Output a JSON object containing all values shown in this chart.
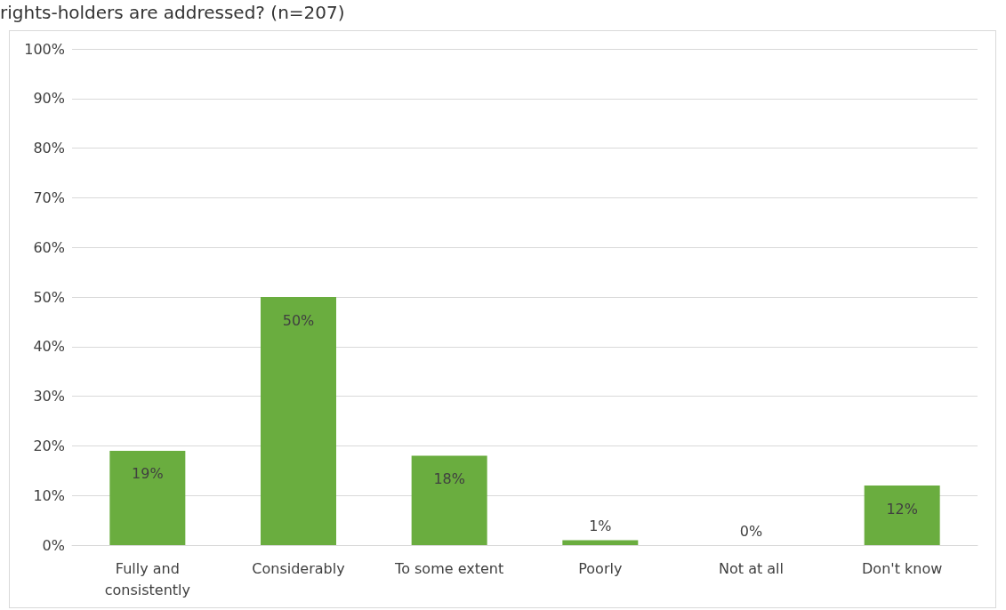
{
  "chart_data": {
    "type": "bar",
    "title": "rights-holders are addressed? (n=207)",
    "categories": [
      "Fully and\nconsistently",
      "Considerably",
      "To some extent",
      "Poorly",
      "Not at all",
      "Don't know"
    ],
    "values": [
      19,
      50,
      18,
      1,
      0,
      12
    ],
    "value_labels": [
      "19%",
      "50%",
      "18%",
      "1%",
      "0%",
      "12%"
    ],
    "color": "#6aad3f",
    "ylim": [
      0,
      100
    ],
    "yticks": [
      {
        "value": 0,
        "label": "0%"
      },
      {
        "value": 10,
        "label": "10%"
      },
      {
        "value": 20,
        "label": "20%"
      },
      {
        "value": 30,
        "label": "30%"
      },
      {
        "value": 40,
        "label": "40%"
      },
      {
        "value": 50,
        "label": "50%"
      },
      {
        "value": 60,
        "label": "60%"
      },
      {
        "value": 70,
        "label": "70%"
      },
      {
        "value": 80,
        "label": "80%"
      },
      {
        "value": 90,
        "label": "90%"
      },
      {
        "value": 100,
        "label": "100%"
      }
    ],
    "grid": "y"
  }
}
